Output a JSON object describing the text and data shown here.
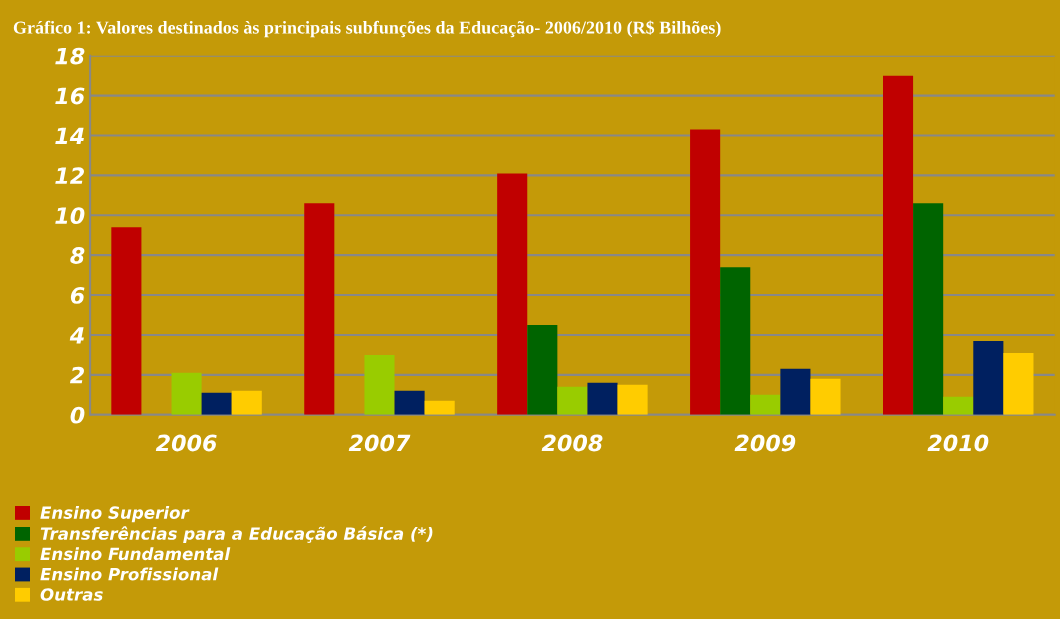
{
  "chart_data": {
    "type": "bar",
    "title": "Gráfico 1: Valores destinados às principais subfunções da Educação- 2006/2010 (R$ Bilhões)",
    "categories": [
      "2006",
      "2007",
      "2008",
      "2009",
      "2010"
    ],
    "series": [
      {
        "name": "Ensino Superior",
        "color": "#c00000",
        "values": [
          9.4,
          10.6,
          12.1,
          14.3,
          17.0
        ]
      },
      {
        "name": "Transferências para a Educação Básica (*)",
        "color": "#006400",
        "values": [
          null,
          null,
          4.5,
          7.4,
          10.6
        ]
      },
      {
        "name": "Ensino Fundamental",
        "color": "#99cc00",
        "values": [
          2.1,
          3.0,
          1.4,
          1.0,
          0.9
        ]
      },
      {
        "name": "Ensino Profissional",
        "color": "#002060",
        "values": [
          1.1,
          1.2,
          1.6,
          2.3,
          3.7
        ]
      },
      {
        "name": "Outras",
        "color": "#ffcc00",
        "values": [
          1.2,
          0.7,
          1.5,
          1.8,
          3.1
        ]
      }
    ],
    "ylim": [
      0,
      18
    ],
    "yticks": [
      0,
      2,
      4,
      6,
      8,
      10,
      12,
      14,
      16,
      18
    ],
    "grid": "y",
    "legend": "bottom left"
  }
}
